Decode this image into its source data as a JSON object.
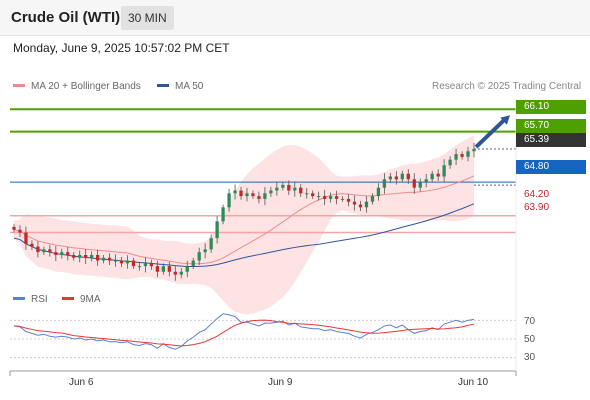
{
  "header": {
    "instrument": "Crude Oil (WTI)",
    "timeframe": "30 MIN"
  },
  "timestamp": "Monday, June 9, 2025 10:57:02 PM CET",
  "legend_main": [
    {
      "label": "MA 20 + Bollinger Bands",
      "color": "#f08a8a"
    },
    {
      "label": "MA 50",
      "color": "#2f5597"
    }
  ],
  "credit": "Research © 2025 Trading Central",
  "legend_rsi": [
    {
      "label": "RSI",
      "color": "#5b7fd6"
    },
    {
      "label": "9MA",
      "color": "#e53935"
    }
  ],
  "levels": {
    "r2": "66.10",
    "r1": "65.70",
    "last": "65.39",
    "pivot": "64.80",
    "s1": "64.20",
    "s2": "63.90"
  },
  "x_labels": [
    "Jun 6",
    "Jun 9",
    "Jun 10"
  ],
  "rsi_ticks": [
    "70",
    "50",
    "30"
  ],
  "colors": {
    "resistance": "#4ea000",
    "pivot": "#1565c0",
    "support": "#e53935",
    "last": "#333333",
    "bollinger_fill": "#fde3e3",
    "candle_up": "#2e8b57",
    "candle_down": "#c62828",
    "arrow": "#2f5597"
  },
  "chart_data": {
    "type": "candlestick",
    "price_ylim": [
      63.0,
      66.3
    ],
    "close": [
      63.95,
      63.9,
      63.7,
      63.65,
      63.55,
      63.6,
      63.55,
      63.5,
      63.55,
      63.5,
      63.45,
      63.5,
      63.45,
      63.5,
      63.4,
      63.45,
      63.4,
      63.4,
      63.35,
      63.4,
      63.3,
      63.3,
      63.35,
      63.3,
      63.2,
      63.3,
      63.2,
      63.15,
      63.2,
      63.3,
      63.4,
      63.55,
      63.6,
      63.8,
      64.1,
      64.35,
      64.6,
      64.65,
      64.55,
      64.6,
      64.55,
      64.5,
      64.6,
      64.65,
      64.7,
      64.75,
      64.65,
      64.7,
      64.6,
      64.6,
      64.55,
      64.55,
      64.5,
      64.55,
      64.5,
      64.5,
      64.45,
      64.4,
      64.35,
      64.45,
      64.55,
      64.7,
      64.85,
      64.9,
      64.85,
      64.95,
      64.85,
      64.7,
      64.8,
      64.85,
      64.95,
      64.9,
      65.1,
      65.2,
      65.3,
      65.25,
      65.35,
      65.39
    ],
    "rsi": [
      64,
      63,
      58,
      56,
      54,
      55,
      53,
      52,
      53,
      52,
      50,
      51,
      49,
      50,
      48,
      49,
      47,
      47,
      46,
      47,
      44,
      43,
      45,
      44,
      40,
      45,
      41,
      39,
      42,
      48,
      52,
      57,
      60,
      66,
      72,
      77,
      76,
      74,
      68,
      68,
      66,
      64,
      67,
      67,
      68,
      69,
      65,
      67,
      63,
      62,
      61,
      61,
      59,
      60,
      58,
      57,
      56,
      53,
      51,
      55,
      57,
      60,
      64,
      65,
      62,
      65,
      60,
      56,
      58,
      59,
      62,
      60,
      66,
      68,
      70,
      68,
      70,
      71
    ],
    "rsi_ylim": [
      20,
      80
    ]
  }
}
